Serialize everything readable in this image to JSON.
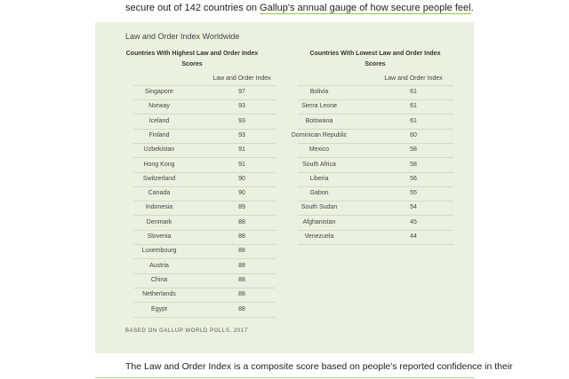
{
  "intro": {
    "before": "secure out of 142 countries on ",
    "link": "Gallup's annual gauge of how secure people feel",
    "after": "."
  },
  "figure": {
    "title": "Law and Order Index Worldwide",
    "tables": [
      {
        "heading": "Countries With Highest Law and Order Index Scores",
        "column_header": "Law and Order Index",
        "rows": [
          [
            "Singapore",
            97
          ],
          [
            "Norway",
            93
          ],
          [
            "Iceland",
            93
          ],
          [
            "Finland",
            93
          ],
          [
            "Uzbekistan",
            91
          ],
          [
            "Hong Kong",
            91
          ],
          [
            "Switzerland",
            90
          ],
          [
            "Canada",
            90
          ],
          [
            "Indonesia",
            89
          ],
          [
            "Denmark",
            88
          ],
          [
            "Slovenia",
            88
          ],
          [
            "Luxembourg",
            88
          ],
          [
            "Austria",
            88
          ],
          [
            "China",
            88
          ],
          [
            "Netherlands",
            88
          ],
          [
            "Egypt",
            88
          ]
        ]
      },
      {
        "heading": "Countries With Lowest Law and Order Index Scores",
        "column_header": "Law and Order Index",
        "rows": [
          [
            "Bolivia",
            61
          ],
          [
            "Sierra Leone",
            61
          ],
          [
            "Botswana",
            61
          ],
          [
            "Dominican Republic",
            60
          ],
          [
            "Mexico",
            58
          ],
          [
            "South Africa",
            58
          ],
          [
            "Liberia",
            56
          ],
          [
            "Gabon",
            55
          ],
          [
            "South Sudan",
            54
          ],
          [
            "Afghanistan",
            45
          ],
          [
            "Venezuela",
            44
          ]
        ]
      }
    ],
    "source": "BASED ON GALLUP WORLD POLLS, 2017"
  },
  "outro": {
    "text": "The Law and Order Index is a composite score based on people's reported confidence in their"
  }
}
